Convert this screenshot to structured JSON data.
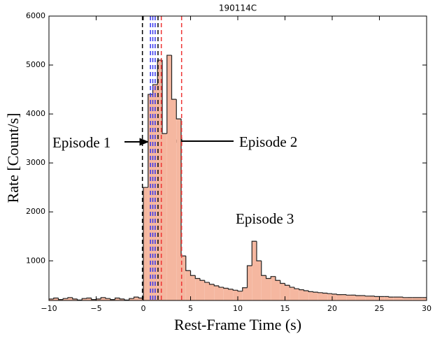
{
  "chart_data": {
    "type": "histogram",
    "title": "190114C",
    "xlabel": "Rest-Frame Time (s)",
    "ylabel": "Rate [Count/s]",
    "bins": [
      -10,
      -9.5,
      -9,
      -8.5,
      -8,
      -7.5,
      -7,
      -6.5,
      -6,
      -5.5,
      -5,
      -4.5,
      -4,
      -3.5,
      -3,
      -2.5,
      -2,
      -1.5,
      -1,
      -0.5,
      0,
      0.5,
      1,
      1.5,
      2,
      2.5,
      3,
      3.5,
      4,
      4.5,
      5,
      5.5,
      6,
      6.5,
      7,
      7.5,
      8,
      8.5,
      9,
      9.5,
      10,
      10.5,
      11,
      11.5,
      12,
      12.5,
      13,
      13.5,
      14,
      14.5,
      15,
      15.5,
      16,
      16.5,
      17,
      17.5,
      18,
      18.5,
      19,
      19.5,
      20,
      20.5,
      21,
      21.5,
      22,
      22.5,
      23,
      23.5,
      24,
      24.5,
      25,
      25.5,
      26,
      26.5,
      27,
      27.5,
      28,
      28.5,
      29,
      29.5,
      30
    ],
    "values": [
      220,
      240,
      210,
      230,
      250,
      220,
      200,
      230,
      240,
      210,
      220,
      250,
      230,
      210,
      240,
      220,
      200,
      230,
      260,
      240,
      2500,
      4400,
      4600,
      5100,
      3600,
      5200,
      4300,
      3900,
      1100,
      800,
      700,
      640,
      600,
      560,
      520,
      490,
      460,
      440,
      420,
      400,
      380,
      450,
      900,
      1400,
      1000,
      700,
      640,
      680,
      600,
      540,
      500,
      460,
      430,
      410,
      390,
      370,
      360,
      350,
      340,
      330,
      320,
      310,
      310,
      300,
      300,
      290,
      290,
      280,
      280,
      270,
      270,
      270,
      260,
      260,
      260,
      250,
      250,
      250,
      250,
      250
    ],
    "color": "#f5b7a0",
    "xlim": [
      -10,
      30
    ],
    "ylim": [
      190,
      6000
    ],
    "xticks": [
      {
        "value": -10,
        "label": "−10"
      },
      {
        "value": -5,
        "label": "−5"
      },
      0,
      5,
      10,
      15,
      20,
      25,
      30
    ],
    "yticks": [
      1000,
      2000,
      3000,
      4000,
      5000,
      6000
    ],
    "vlines": [
      {
        "x": -0.1,
        "color": "#000000"
      },
      {
        "x": 1.55,
        "color": "#000000"
      },
      {
        "x": 0.75,
        "color": "#3333ee"
      },
      {
        "x": 1.0,
        "color": "#3333ee"
      },
      {
        "x": 1.25,
        "color": "#3333ee"
      },
      {
        "x": 1.9,
        "color": "#ee3333"
      },
      {
        "x": 4.05,
        "color": "#ee3333"
      }
    ],
    "annotations": [
      "Episode 1",
      "Episode 2",
      "Episode 3"
    ]
  }
}
